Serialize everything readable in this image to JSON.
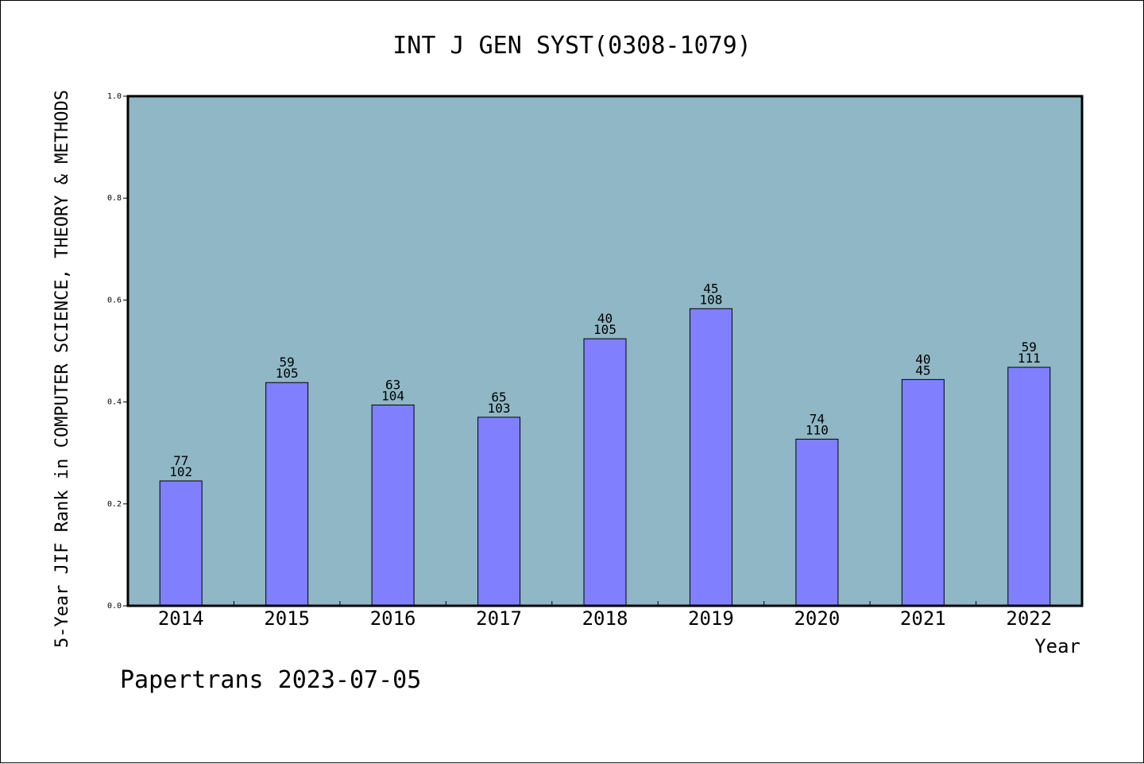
{
  "colors": {
    "plot_background": "#8fb7c5",
    "bar_fill": "#8080ff",
    "bar_stroke": "#000000",
    "axis": "#000000"
  },
  "footer": "Papertrans 2023-07-05",
  "chart_data": {
    "type": "bar",
    "title": "INT J GEN SYST(0308-1079)",
    "xlabel": "Year",
    "ylabel": "5-Year JIF Rank in COMPUTER SCIENCE, THEORY & METHODS",
    "ylim": [
      0.0,
      1.0
    ],
    "yticks": [
      "0.0",
      "0.2",
      "0.4",
      "0.6",
      "0.8",
      "1.0"
    ],
    "grid": false,
    "categories": [
      "2014",
      "2015",
      "2016",
      "2017",
      "2018",
      "2019",
      "2020",
      "2021",
      "2022"
    ],
    "values": [
      0.245,
      0.438,
      0.394,
      0.37,
      0.524,
      0.583,
      0.327,
      0.444,
      0.468
    ],
    "rank": [
      "77",
      "59",
      "63",
      "65",
      "40",
      "45",
      "74",
      "40",
      "59"
    ],
    "total": [
      "102",
      "105",
      "104",
      "103",
      "105",
      "108",
      "110",
      "45",
      "111"
    ]
  }
}
